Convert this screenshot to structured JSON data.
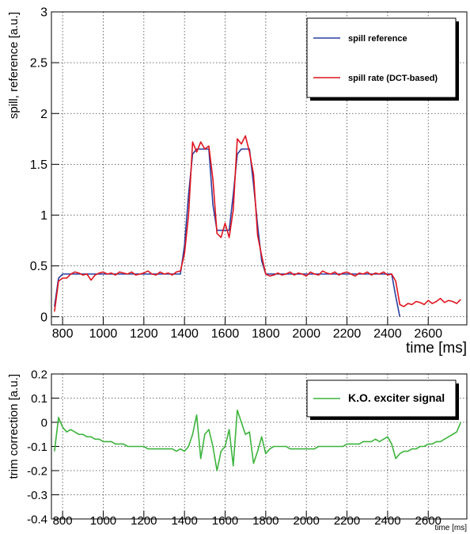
{
  "chart_data": [
    {
      "type": "line",
      "x_label": "time [ms]",
      "y_label": "spill, reference [a.u.]",
      "x": [
        760,
        780,
        800,
        820,
        840,
        860,
        880,
        900,
        920,
        940,
        960,
        980,
        1000,
        1020,
        1040,
        1060,
        1080,
        1100,
        1120,
        1140,
        1160,
        1180,
        1200,
        1220,
        1240,
        1260,
        1280,
        1300,
        1320,
        1340,
        1360,
        1380,
        1400,
        1420,
        1440,
        1460,
        1480,
        1500,
        1520,
        1540,
        1560,
        1580,
        1600,
        1620,
        1640,
        1660,
        1680,
        1700,
        1720,
        1740,
        1760,
        1780,
        1800,
        1820,
        1840,
        1860,
        1880,
        1900,
        1920,
        1940,
        1960,
        1980,
        2000,
        2020,
        2040,
        2060,
        2080,
        2100,
        2120,
        2140,
        2160,
        2180,
        2200,
        2220,
        2240,
        2260,
        2280,
        2300,
        2320,
        2340,
        2360,
        2380,
        2400,
        2420,
        2440,
        2460,
        2480,
        2500,
        2520,
        2540,
        2560,
        2580,
        2600,
        2620,
        2640,
        2660,
        2680,
        2700,
        2720,
        2740,
        2760
      ],
      "series": [
        {
          "name": "spill reference",
          "color": "#2a3fa0",
          "values": [
            0.1,
            0.38,
            0.42,
            0.42,
            0.42,
            0.42,
            0.42,
            0.42,
            0.42,
            0.42,
            0.42,
            0.42,
            0.42,
            0.42,
            0.42,
            0.42,
            0.42,
            0.42,
            0.42,
            0.42,
            0.42,
            0.42,
            0.42,
            0.42,
            0.42,
            0.42,
            0.42,
            0.42,
            0.42,
            0.42,
            0.42,
            0.42,
            0.7,
            1.2,
            1.6,
            1.65,
            1.65,
            1.65,
            1.65,
            1.1,
            0.85,
            0.85,
            0.85,
            0.85,
            1.2,
            1.6,
            1.65,
            1.65,
            1.65,
            1.3,
            0.9,
            0.55,
            0.42,
            0.42,
            0.42,
            0.42,
            0.42,
            0.42,
            0.42,
            0.42,
            0.42,
            0.42,
            0.42,
            0.42,
            0.42,
            0.42,
            0.42,
            0.42,
            0.42,
            0.42,
            0.42,
            0.42,
            0.42,
            0.42,
            0.42,
            0.42,
            0.42,
            0.42,
            0.42,
            0.42,
            0.42,
            0.42,
            0.42,
            0.42,
            0.2,
            0.0,
            null,
            null,
            null,
            null,
            null,
            null,
            null,
            null,
            null,
            null,
            null,
            null,
            null,
            null,
            null
          ]
        },
        {
          "name": "spill rate (DCT-based)",
          "color": "#e0141e",
          "values": [
            0.05,
            0.35,
            0.38,
            0.38,
            0.42,
            0.44,
            0.43,
            0.41,
            0.42,
            0.36,
            0.41,
            0.43,
            0.44,
            0.42,
            0.43,
            0.41,
            0.44,
            0.43,
            0.42,
            0.44,
            0.41,
            0.42,
            0.43,
            0.45,
            0.42,
            0.41,
            0.44,
            0.42,
            0.43,
            0.41,
            0.44,
            0.45,
            0.62,
            1.0,
            1.72,
            1.62,
            1.72,
            1.65,
            1.68,
            1.35,
            0.82,
            0.78,
            0.92,
            0.78,
            1.05,
            1.75,
            1.7,
            1.78,
            1.62,
            1.4,
            0.8,
            0.6,
            0.42,
            0.4,
            0.41,
            0.43,
            0.41,
            0.42,
            0.44,
            0.41,
            0.43,
            0.42,
            0.4,
            0.44,
            0.42,
            0.41,
            0.45,
            0.43,
            0.42,
            0.44,
            0.41,
            0.43,
            0.44,
            0.42,
            0.4,
            0.43,
            0.42,
            0.44,
            0.41,
            0.43,
            0.42,
            0.44,
            0.41,
            0.42,
            0.35,
            0.12,
            0.1,
            0.13,
            0.12,
            0.15,
            0.14,
            0.12,
            0.16,
            0.13,
            0.15,
            0.18,
            0.14,
            0.16,
            0.15,
            0.13,
            0.17
          ]
        }
      ],
      "xlim": [
        745,
        2790
      ],
      "xticks": [
        800,
        1000,
        1200,
        1400,
        1600,
        1800,
        2000,
        2200,
        2400,
        2600
      ],
      "ylim": [
        -0.08,
        3
      ],
      "yticks": [
        0,
        0.5,
        1,
        1.5,
        2,
        2.5,
        3
      ],
      "grid": true,
      "legend": "top-right"
    },
    {
      "type": "line",
      "x_label": "time [ms]",
      "y_label": "trim correction [a.u.]",
      "x": [
        760,
        780,
        800,
        820,
        840,
        860,
        880,
        900,
        920,
        940,
        960,
        980,
        1000,
        1020,
        1040,
        1060,
        1080,
        1100,
        1120,
        1140,
        1160,
        1180,
        1200,
        1220,
        1240,
        1260,
        1280,
        1300,
        1320,
        1340,
        1360,
        1380,
        1400,
        1420,
        1440,
        1460,
        1480,
        1500,
        1520,
        1540,
        1560,
        1580,
        1600,
        1620,
        1640,
        1660,
        1680,
        1700,
        1720,
        1740,
        1760,
        1780,
        1800,
        1820,
        1840,
        1860,
        1880,
        1900,
        1920,
        1940,
        1960,
        1980,
        2000,
        2020,
        2040,
        2060,
        2080,
        2100,
        2120,
        2140,
        2160,
        2180,
        2200,
        2220,
        2240,
        2260,
        2280,
        2300,
        2320,
        2340,
        2360,
        2380,
        2400,
        2420,
        2440,
        2460,
        2480,
        2500,
        2520,
        2540,
        2560,
        2580,
        2600,
        2620,
        2640,
        2660,
        2680,
        2700,
        2720,
        2740,
        2760
      ],
      "series": [
        {
          "name": "K.O. exciter signal",
          "color": "#3cb43c",
          "values": [
            -0.12,
            0.02,
            -0.02,
            -0.04,
            -0.03,
            -0.04,
            -0.05,
            -0.05,
            -0.06,
            -0.06,
            -0.07,
            -0.07,
            -0.08,
            -0.08,
            -0.08,
            -0.09,
            -0.09,
            -0.09,
            -0.1,
            -0.1,
            -0.1,
            -0.1,
            -0.1,
            -0.11,
            -0.11,
            -0.11,
            -0.11,
            -0.11,
            -0.11,
            -0.11,
            -0.12,
            -0.11,
            -0.12,
            -0.1,
            -0.05,
            0.03,
            -0.15,
            -0.05,
            -0.03,
            -0.1,
            -0.2,
            -0.12,
            -0.1,
            -0.03,
            -0.18,
            0.05,
            0,
            -0.05,
            -0.04,
            -0.17,
            -0.12,
            -0.06,
            -0.13,
            -0.11,
            -0.1,
            -0.1,
            -0.1,
            -0.1,
            -0.11,
            -0.11,
            -0.11,
            -0.11,
            -0.11,
            -0.11,
            -0.11,
            -0.1,
            -0.1,
            -0.1,
            -0.1,
            -0.1,
            -0.1,
            -0.1,
            -0.09,
            -0.09,
            -0.09,
            -0.09,
            -0.08,
            -0.08,
            -0.08,
            -0.07,
            -0.08,
            -0.07,
            -0.06,
            -0.09,
            -0.15,
            -0.13,
            -0.12,
            -0.12,
            -0.11,
            -0.11,
            -0.1,
            -0.1,
            -0.09,
            -0.09,
            -0.08,
            -0.08,
            -0.07,
            -0.06,
            -0.05,
            -0.04,
            0.0
          ]
        }
      ],
      "xlim": [
        745,
        2790
      ],
      "xticks": [
        800,
        1000,
        1200,
        1400,
        1600,
        1800,
        2000,
        2200,
        2400,
        2600
      ],
      "ylim": [
        -0.4,
        0.2
      ],
      "yticks": [
        -0.4,
        -0.3,
        -0.2,
        -0.1,
        0,
        0.1,
        0.2
      ],
      "grid": true,
      "legend": "top-right"
    }
  ]
}
